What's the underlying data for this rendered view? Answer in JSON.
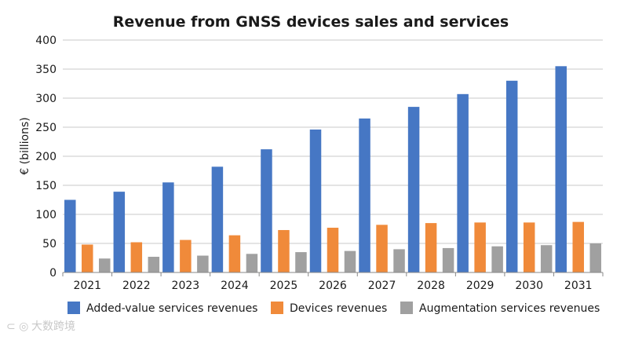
{
  "chart_data": {
    "type": "bar",
    "title": "Revenue from GNSS devices sales and services",
    "xlabel": "",
    "ylabel": "€ (billions)",
    "ylim": [
      0,
      400
    ],
    "yticks": [
      0,
      50,
      100,
      150,
      200,
      250,
      300,
      350,
      400
    ],
    "grid": true,
    "legend_position": "bottom",
    "categories": [
      "2021",
      "2022",
      "2023",
      "2024",
      "2025",
      "2026",
      "2027",
      "2028",
      "2029",
      "2030",
      "2031"
    ],
    "series": [
      {
        "name": "Added-value services revenues",
        "color": "#4677c4",
        "values": [
          125,
          139,
          155,
          182,
          212,
          246,
          265,
          285,
          307,
          330,
          355
        ]
      },
      {
        "name": "Devices revenues",
        "color": "#f08a3a",
        "values": [
          48,
          52,
          56,
          64,
          73,
          77,
          82,
          85,
          86,
          86,
          87
        ]
      },
      {
        "name": "Augmentation services revenues",
        "color": "#a0a0a0",
        "values": [
          24,
          27,
          29,
          32,
          35,
          37,
          40,
          42,
          45,
          47,
          50
        ]
      }
    ]
  },
  "watermark": {
    "text": "大数跨境"
  }
}
